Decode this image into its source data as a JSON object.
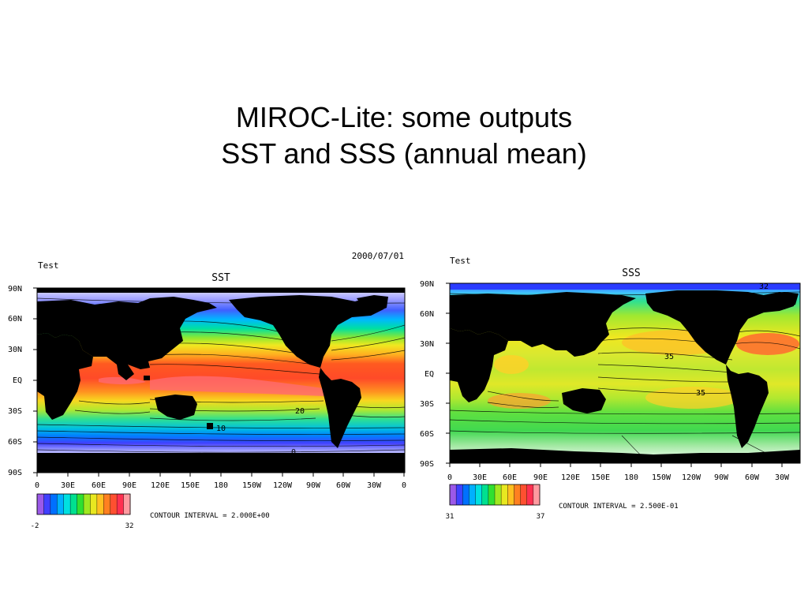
{
  "slide": {
    "title_line1": "MIROC-Lite: some outputs",
    "title_line2": "SST and SSS (annual mean)"
  },
  "colors": {
    "land": "#000000",
    "scale": [
      "#9b59e8",
      "#4040ff",
      "#0070ff",
      "#00b0ff",
      "#00e0e0",
      "#00e090",
      "#30e030",
      "#a0e820",
      "#e8e820",
      "#ffc020",
      "#ff8020",
      "#ff5030",
      "#ff3050",
      "#ff9aa0"
    ]
  },
  "sst_map": {
    "header_left": "Test",
    "header_right": "2000/07/01",
    "title": "SST",
    "lat_labels": [
      "90N",
      "60N",
      "30N",
      "EQ",
      "30S",
      "60S",
      "90S"
    ],
    "lon_labels": [
      "0",
      "30E",
      "60E",
      "90E",
      "120E",
      "150E",
      "180",
      "150W",
      "120W",
      "90W",
      "60W",
      "30W",
      "0"
    ],
    "contour_labels": [
      "20",
      "10",
      "0"
    ],
    "colorbar_min": "-2",
    "colorbar_max": "32",
    "contour_interval": "CONTOUR INTERVAL = 2.000E+00"
  },
  "sss_map": {
    "header_left": "Test",
    "title": "SSS",
    "lat_labels": [
      "90N",
      "60N",
      "30N",
      "EQ",
      "30S",
      "60S",
      "90S"
    ],
    "lon_labels": [
      "0",
      "30E",
      "60E",
      "90E",
      "120E",
      "150E",
      "180",
      "150W",
      "120W",
      "90W",
      "60W",
      "30W"
    ],
    "contour_labels": [
      "35",
      "35",
      "32"
    ],
    "colorbar_min": "31",
    "colorbar_max": "37",
    "contour_interval": "CONTOUR INTERVAL = 2.500E-01"
  }
}
